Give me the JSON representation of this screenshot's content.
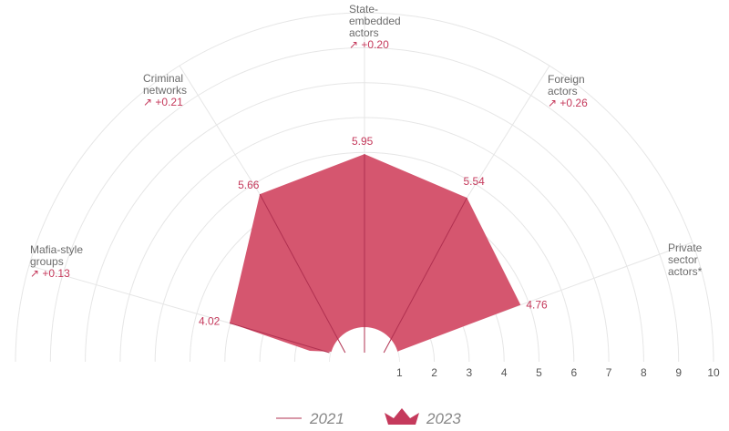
{
  "chart_data": {
    "type": "radar",
    "scale_range": [
      0,
      10
    ],
    "ticks": [
      "1",
      "2",
      "3",
      "4",
      "5",
      "6",
      "7",
      "8",
      "9",
      "10"
    ],
    "colors": {
      "series_2023": "#d5566f",
      "series_2021_line": "#b03050",
      "change": "#c53a5c",
      "grid": "#e6e6e6"
    },
    "categories": [
      {
        "lines": [
          "Mafia-style",
          "groups"
        ],
        "change": "↗ +0.13",
        "value_2023": 4.02,
        "value_2021": 3.89,
        "value_label": "4.02"
      },
      {
        "lines": [
          "Criminal",
          "networks"
        ],
        "change": "↗ +0.21",
        "value_2023": 5.66,
        "value_2021": 5.45,
        "value_label": "5.66"
      },
      {
        "lines": [
          "State-",
          "embedded",
          "actors"
        ],
        "change": "↗ +0.20",
        "value_2023": 5.95,
        "value_2021": 5.75,
        "value_label": "5.95"
      },
      {
        "lines": [
          "Foreign",
          "actors"
        ],
        "change": "↗ +0.26",
        "value_2023": 5.54,
        "value_2021": 5.28,
        "value_label": "5.54"
      },
      {
        "lines": [
          "Private",
          "sector",
          "actors*"
        ],
        "change": "",
        "value_2023": 4.76,
        "value_2021": null,
        "value_label": "4.76"
      }
    ],
    "series": [
      {
        "name": "2021"
      },
      {
        "name": "2023"
      }
    ]
  }
}
